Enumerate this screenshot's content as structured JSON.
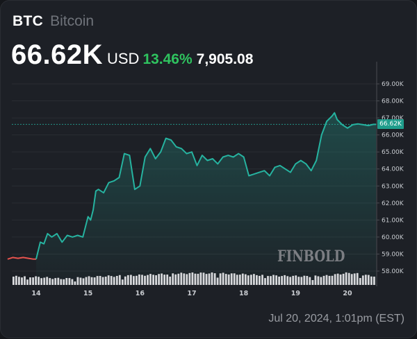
{
  "header": {
    "ticker": "BTC",
    "name": "Bitcoin",
    "price": "66.62K",
    "currency": "USD",
    "change_pct": "13.46%",
    "change_abs": "7,905.08"
  },
  "colors": {
    "background": "#1d2026",
    "line_up": "#26b3a0",
    "line_down": "#e8534e",
    "change_positive": "#2fc35f",
    "price_tag": "#1f9d8c",
    "volume_bar": "#d8d9dc"
  },
  "watermark": "FINBOLD",
  "footer": {
    "timestamp": "Jul 20, 2024, 1:01pm (EST)"
  },
  "price_tag": "66.62K",
  "chart_data": {
    "type": "line",
    "title": "BTC Bitcoin",
    "subtitle": "66.62K USD 13.46% 7,905.08",
    "xlabel": "",
    "ylabel": "",
    "x_ticks": [
      "14",
      "15",
      "16",
      "17",
      "18",
      "19",
      "20"
    ],
    "y_ticks": [
      "69.00K",
      "68.00K",
      "67.00K",
      "66.00K",
      "65.00K",
      "64.00K",
      "63.00K",
      "62.00K",
      "61.00K",
      "60.00K",
      "59.00K",
      "58.00K"
    ],
    "ylim": [
      57500,
      69500
    ],
    "grid": true,
    "y_axis_position": "right",
    "current_price_line": 66620,
    "x": [
      13.45,
      13.55,
      13.65,
      13.75,
      13.85,
      13.95,
      14.0,
      14.08,
      14.15,
      14.22,
      14.3,
      14.4,
      14.5,
      14.6,
      14.7,
      14.8,
      14.9,
      15.0,
      15.05,
      15.1,
      15.15,
      15.2,
      15.3,
      15.4,
      15.5,
      15.6,
      15.7,
      15.8,
      15.9,
      16.0,
      16.1,
      16.2,
      16.3,
      16.4,
      16.5,
      16.6,
      16.7,
      16.8,
      16.9,
      17.0,
      17.1,
      17.2,
      17.3,
      17.4,
      17.5,
      17.6,
      17.7,
      17.8,
      17.9,
      18.0,
      18.1,
      18.2,
      18.3,
      18.4,
      18.5,
      18.6,
      18.7,
      18.8,
      18.9,
      19.0,
      19.1,
      19.2,
      19.3,
      19.4,
      19.5,
      19.6,
      19.7,
      19.75,
      19.8,
      19.9,
      20.0,
      20.1,
      20.2,
      20.3,
      20.4,
      20.5,
      20.55
    ],
    "series": [
      {
        "name": "BTC/USD",
        "values": [
          58700,
          58800,
          58750,
          58800,
          58750,
          58700,
          58700,
          59700,
          59600,
          60200,
          60000,
          60200,
          59700,
          60100,
          60000,
          60100,
          60000,
          61200,
          61000,
          61600,
          62700,
          62800,
          62600,
          63200,
          63300,
          63500,
          64900,
          64800,
          62800,
          63000,
          64700,
          65200,
          64600,
          65000,
          65800,
          65700,
          65300,
          65200,
          64900,
          65000,
          64200,
          64800,
          64500,
          64600,
          64300,
          64700,
          64800,
          64700,
          64900,
          64700,
          63600,
          63700,
          63800,
          63900,
          63600,
          64100,
          64200,
          64000,
          63800,
          64300,
          64500,
          64300,
          63900,
          64500,
          66000,
          66800,
          67100,
          67300,
          66900,
          66600,
          66400,
          66600,
          66650,
          66600,
          66550,
          66620,
          66620
        ]
      }
    ],
    "volume_bars": "relative volume histogram along bottom (range roughly 58.0K–58.5K band), highest around 17th and 20th"
  }
}
